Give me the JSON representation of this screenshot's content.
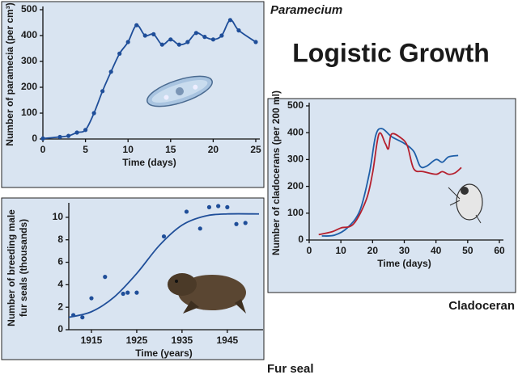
{
  "title": "Logistic Growth",
  "chart_data": [
    {
      "type": "line",
      "caption": "Paramecium",
      "xlabel": "Time (days)",
      "ylabel": "Number of paramecia (per cm³)",
      "xlim": [
        0,
        25
      ],
      "ylim": [
        0,
        500
      ],
      "xticks": [
        0,
        5,
        10,
        15,
        20,
        25
      ],
      "yticks": [
        0,
        100,
        200,
        300,
        400,
        500
      ],
      "series": [
        {
          "color": "#1f4e99",
          "markers": true,
          "line": true,
          "x": [
            0,
            2,
            3,
            4,
            5,
            6,
            7,
            8,
            9,
            10,
            11,
            12,
            13,
            14,
            15,
            16,
            17,
            18,
            19,
            20,
            21,
            22,
            23,
            25
          ],
          "values": [
            2,
            8,
            12,
            25,
            35,
            100,
            185,
            260,
            330,
            375,
            440,
            400,
            405,
            365,
            385,
            365,
            375,
            410,
            395,
            385,
            400,
            460,
            420,
            375
          ]
        }
      ]
    },
    {
      "type": "line",
      "caption": "Cladoceran",
      "xlabel": "Time (days)",
      "ylabel": "Number of cladocerans (per 200 ml)",
      "xlim": [
        0,
        60
      ],
      "ylim": [
        0,
        500
      ],
      "xticks": [
        0,
        10,
        20,
        30,
        40,
        50,
        60
      ],
      "yticks": [
        0,
        100,
        200,
        300,
        400,
        500
      ],
      "series": [
        {
          "color": "#1f5fa8",
          "markers": false,
          "line": true,
          "x": [
            4,
            8,
            12,
            16,
            19,
            21,
            23,
            26,
            30,
            33,
            35,
            37,
            40,
            42,
            44,
            47
          ],
          "values": [
            15,
            18,
            45,
            110,
            250,
            390,
            415,
            385,
            360,
            330,
            275,
            275,
            300,
            290,
            310,
            315
          ]
        },
        {
          "color": "#b5202e",
          "markers": false,
          "line": true,
          "x": [
            3,
            7,
            10,
            14,
            18,
            20,
            22,
            24,
            25,
            26,
            29,
            31,
            33,
            36,
            40,
            42,
            44,
            46,
            48
          ],
          "values": [
            20,
            30,
            45,
            60,
            150,
            250,
            395,
            360,
            340,
            395,
            380,
            350,
            265,
            255,
            245,
            255,
            245,
            250,
            270
          ]
        }
      ]
    },
    {
      "type": "scatter",
      "caption": "Fur seal",
      "xlabel": "Time (years)",
      "ylabel": [
        "Number of breeding male",
        "fur seals (thousands)"
      ],
      "xlim": [
        1910,
        1952
      ],
      "ylim": [
        0,
        11
      ],
      "xticks": [
        1915,
        1925,
        1935,
        1945
      ],
      "yticks": [
        0,
        2,
        4,
        6,
        8,
        10
      ],
      "series": [
        {
          "color": "#1f4e99",
          "markers": true,
          "line": false,
          "x": [
            1911,
            1913,
            1915,
            1918,
            1922,
            1923,
            1925,
            1931,
            1936,
            1939,
            1941,
            1943,
            1945,
            1947,
            1949
          ],
          "values": [
            1.3,
            1.1,
            2.8,
            4.7,
            3.2,
            3.3,
            3.3,
            8.3,
            10.5,
            9,
            10.9,
            11,
            10.9,
            9.4,
            9.5
          ]
        },
        {
          "color": "#1f4e99",
          "markers": false,
          "line": true,
          "x": [
            1910,
            1915,
            1920,
            1925,
            1930,
            1935,
            1940,
            1945,
            1952
          ],
          "values": [
            1.1,
            1.6,
            2.9,
            5,
            7.5,
            9.3,
            10.1,
            10.3,
            10.3
          ]
        }
      ]
    }
  ]
}
